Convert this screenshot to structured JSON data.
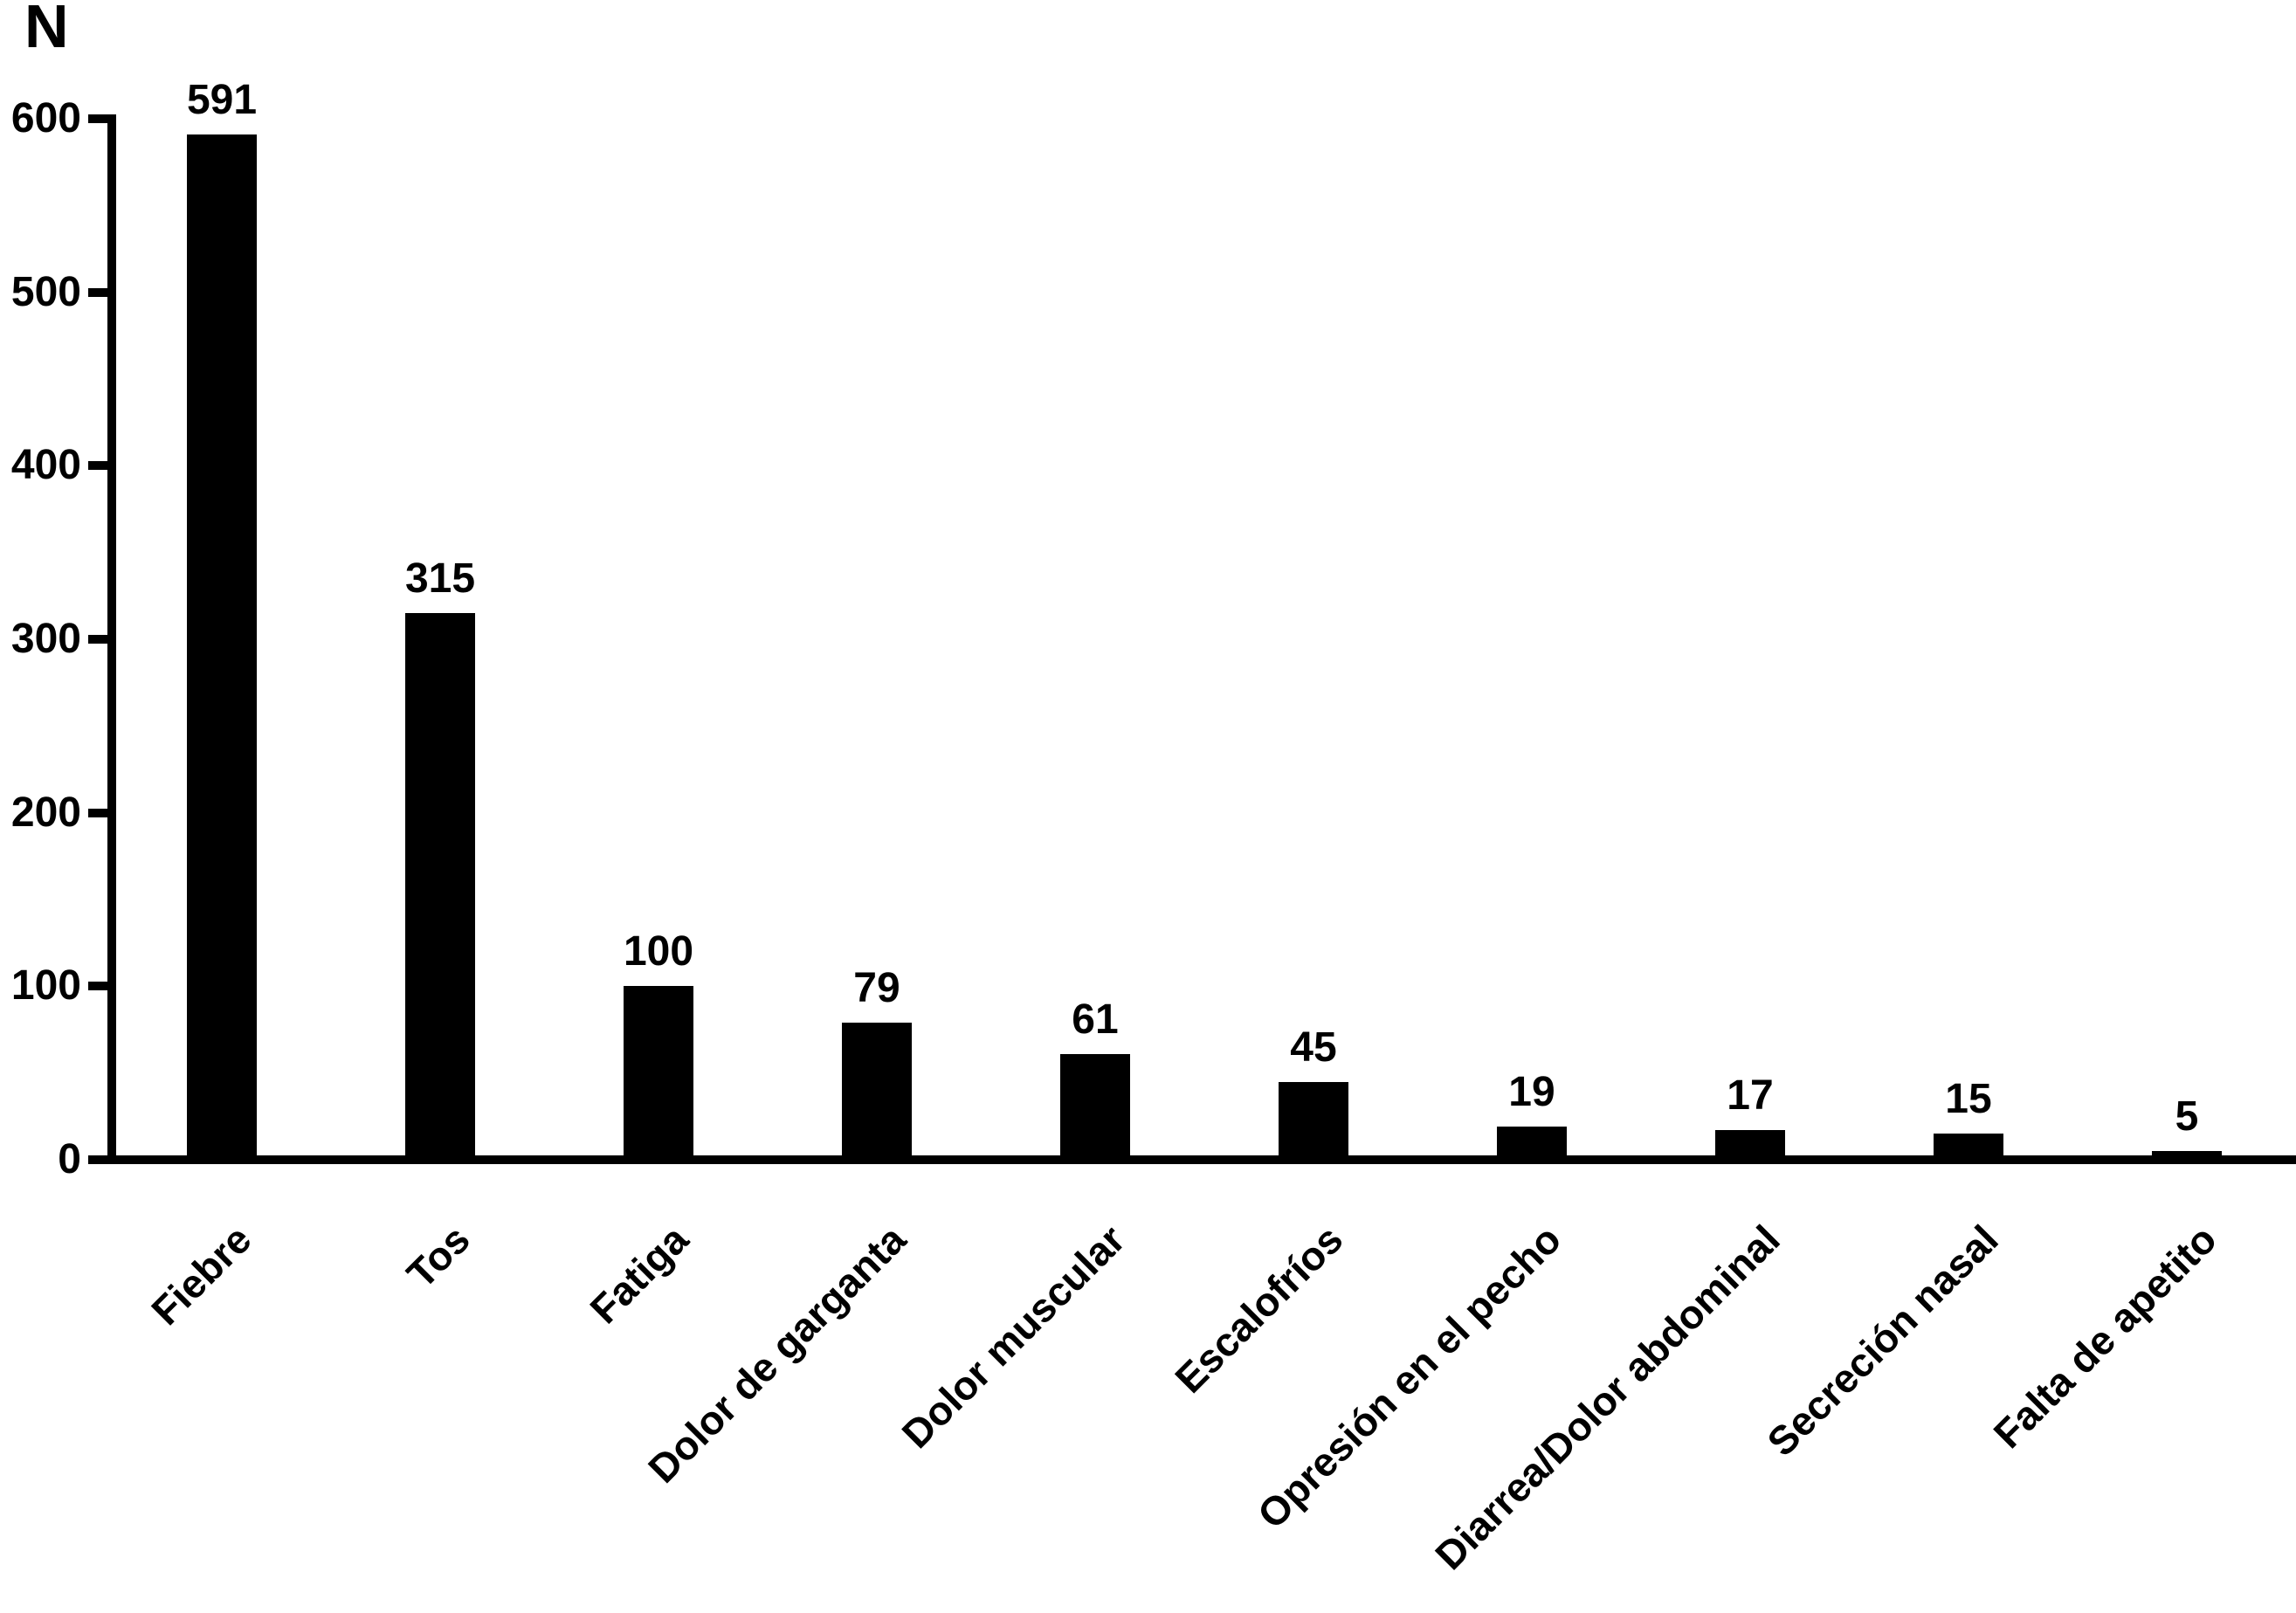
{
  "chart_data": {
    "type": "bar",
    "title": "",
    "ylabel": "N",
    "xlabel": "",
    "categories": [
      "Fiebre",
      "Tos",
      "Fatiga",
      "Dolor de garganta",
      "Dolor muscular",
      "Escalofríos",
      "Opresión en el pecho",
      "Diarrea/Dolor abdominal",
      "Secreción nasal",
      "Falta de apetito"
    ],
    "values": [
      591,
      315,
      100,
      79,
      61,
      45,
      19,
      17,
      15,
      5
    ],
    "value_labels": [
      "591",
      "315",
      "100",
      "79",
      "61",
      "45",
      "19",
      "17",
      "15",
      "5"
    ],
    "yticks": [
      0,
      100,
      200,
      300,
      400,
      500,
      600
    ],
    "ylim": [
      0,
      600
    ],
    "grid": false,
    "legend": "none",
    "bar_color": "#000000",
    "background_color": "#ffffff",
    "text_color": "#000000"
  }
}
